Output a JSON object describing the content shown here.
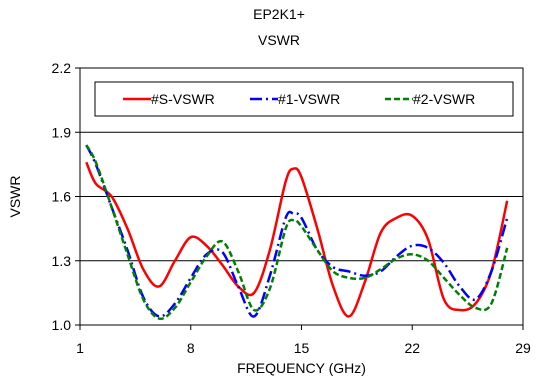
{
  "chart_data": {
    "type": "line",
    "title": "EP2K1+",
    "subtitle": "VSWR",
    "xlabel": "FREQUENCY (GHz)",
    "ylabel": "VSWR",
    "xlim": [
      1,
      29
    ],
    "ylim": [
      1.0,
      2.2
    ],
    "xticks": [
      1,
      8,
      15,
      22,
      29
    ],
    "xtick_labels": [
      "1",
      "8",
      "15",
      "22",
      "29"
    ],
    "yticks": [
      1.0,
      1.3,
      1.6,
      1.9,
      2.2
    ],
    "ytick_labels": [
      "1.0",
      "1.3",
      "1.6",
      "1.9",
      "2.2"
    ],
    "grid": {
      "horizontal": true,
      "vertical": false
    },
    "legend": "top",
    "series": [
      {
        "name": "#S-VSWR",
        "color": "#ff0000",
        "dash": "solid",
        "x": [
          1.4,
          2,
          3,
          4,
          5,
          6,
          7,
          8,
          9,
          10,
          11,
          12,
          13,
          14,
          14.5,
          15,
          16,
          17,
          18,
          19,
          20,
          21,
          22,
          23,
          24,
          25,
          26,
          27,
          28
        ],
        "y": [
          1.76,
          1.66,
          1.6,
          1.45,
          1.26,
          1.18,
          1.3,
          1.41,
          1.37,
          1.28,
          1.18,
          1.15,
          1.35,
          1.67,
          1.73,
          1.69,
          1.45,
          1.18,
          1.04,
          1.2,
          1.43,
          1.5,
          1.51,
          1.4,
          1.12,
          1.07,
          1.1,
          1.25,
          1.58
        ]
      },
      {
        "name": "#1-VSWR",
        "color": "#0000ff",
        "dash": "dashdot",
        "x": [
          1.4,
          2,
          3,
          4,
          5,
          6,
          7,
          8,
          9,
          10,
          11,
          12,
          13,
          14,
          14.5,
          15,
          16,
          17,
          18,
          19,
          20,
          21,
          22,
          23,
          24,
          25,
          26,
          27,
          28
        ],
        "y": [
          1.84,
          1.75,
          1.55,
          1.35,
          1.13,
          1.04,
          1.1,
          1.22,
          1.33,
          1.34,
          1.18,
          1.04,
          1.23,
          1.5,
          1.52,
          1.5,
          1.35,
          1.27,
          1.25,
          1.23,
          1.25,
          1.32,
          1.37,
          1.36,
          1.29,
          1.18,
          1.12,
          1.25,
          1.5
        ]
      },
      {
        "name": "#2-VSWR",
        "color": "#008000",
        "dash": "dashed",
        "x": [
          1.4,
          2,
          3,
          4,
          5,
          6,
          7,
          8,
          9,
          10,
          11,
          12,
          13,
          14,
          14.5,
          15,
          16,
          17,
          18,
          19,
          20,
          21,
          22,
          23,
          24,
          25,
          26,
          27,
          28
        ],
        "y": [
          1.84,
          1.76,
          1.55,
          1.33,
          1.12,
          1.03,
          1.08,
          1.2,
          1.32,
          1.39,
          1.25,
          1.07,
          1.17,
          1.45,
          1.49,
          1.46,
          1.35,
          1.25,
          1.22,
          1.22,
          1.26,
          1.31,
          1.33,
          1.3,
          1.22,
          1.14,
          1.08,
          1.1,
          1.36
        ]
      }
    ]
  }
}
